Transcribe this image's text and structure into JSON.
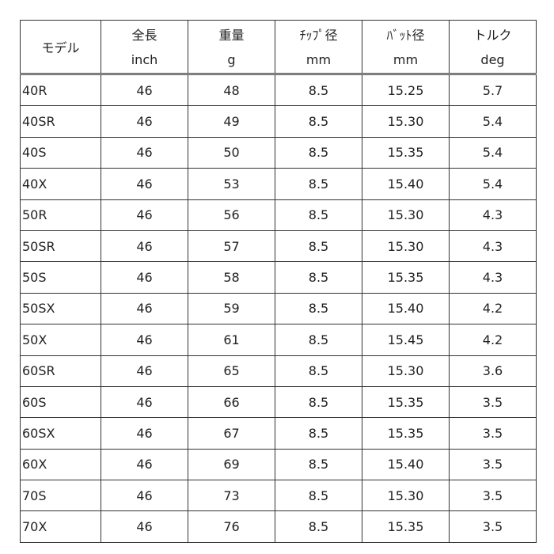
{
  "headers": [
    {
      "name": "モデル",
      "unit": ""
    },
    {
      "name": "全長",
      "unit": "inch"
    },
    {
      "name": "重量",
      "unit": "g"
    },
    {
      "name": "ﾁｯﾌﾟ径",
      "unit": "mm"
    },
    {
      "name": "ﾊﾞｯﾄ径",
      "unit": "mm"
    },
    {
      "name": "トルク",
      "unit": "deg"
    }
  ],
  "rows": [
    [
      "40R",
      "46",
      "48",
      "8.5",
      "15.25",
      "5.7"
    ],
    [
      "40SR",
      "46",
      "49",
      "8.5",
      "15.30",
      "5.4"
    ],
    [
      "40S",
      "46",
      "50",
      "8.5",
      "15.35",
      "5.4"
    ],
    [
      "40X",
      "46",
      "53",
      "8.5",
      "15.40",
      "5.4"
    ],
    [
      "50R",
      "46",
      "56",
      "8.5",
      "15.30",
      "4.3"
    ],
    [
      "50SR",
      "46",
      "57",
      "8.5",
      "15.30",
      "4.3"
    ],
    [
      "50S",
      "46",
      "58",
      "8.5",
      "15.35",
      "4.3"
    ],
    [
      "50SX",
      "46",
      "59",
      "8.5",
      "15.40",
      "4.2"
    ],
    [
      "50X",
      "46",
      "61",
      "8.5",
      "15.45",
      "4.2"
    ],
    [
      "60SR",
      "46",
      "65",
      "8.5",
      "15.30",
      "3.6"
    ],
    [
      "60S",
      "46",
      "66",
      "8.5",
      "15.35",
      "3.5"
    ],
    [
      "60SX",
      "46",
      "67",
      "8.5",
      "15.35",
      "3.5"
    ],
    [
      "60X",
      "46",
      "69",
      "8.5",
      "15.40",
      "3.5"
    ],
    [
      "70S",
      "46",
      "73",
      "8.5",
      "15.30",
      "3.5"
    ],
    [
      "70X",
      "46",
      "76",
      "8.5",
      "15.35",
      "3.5"
    ]
  ]
}
